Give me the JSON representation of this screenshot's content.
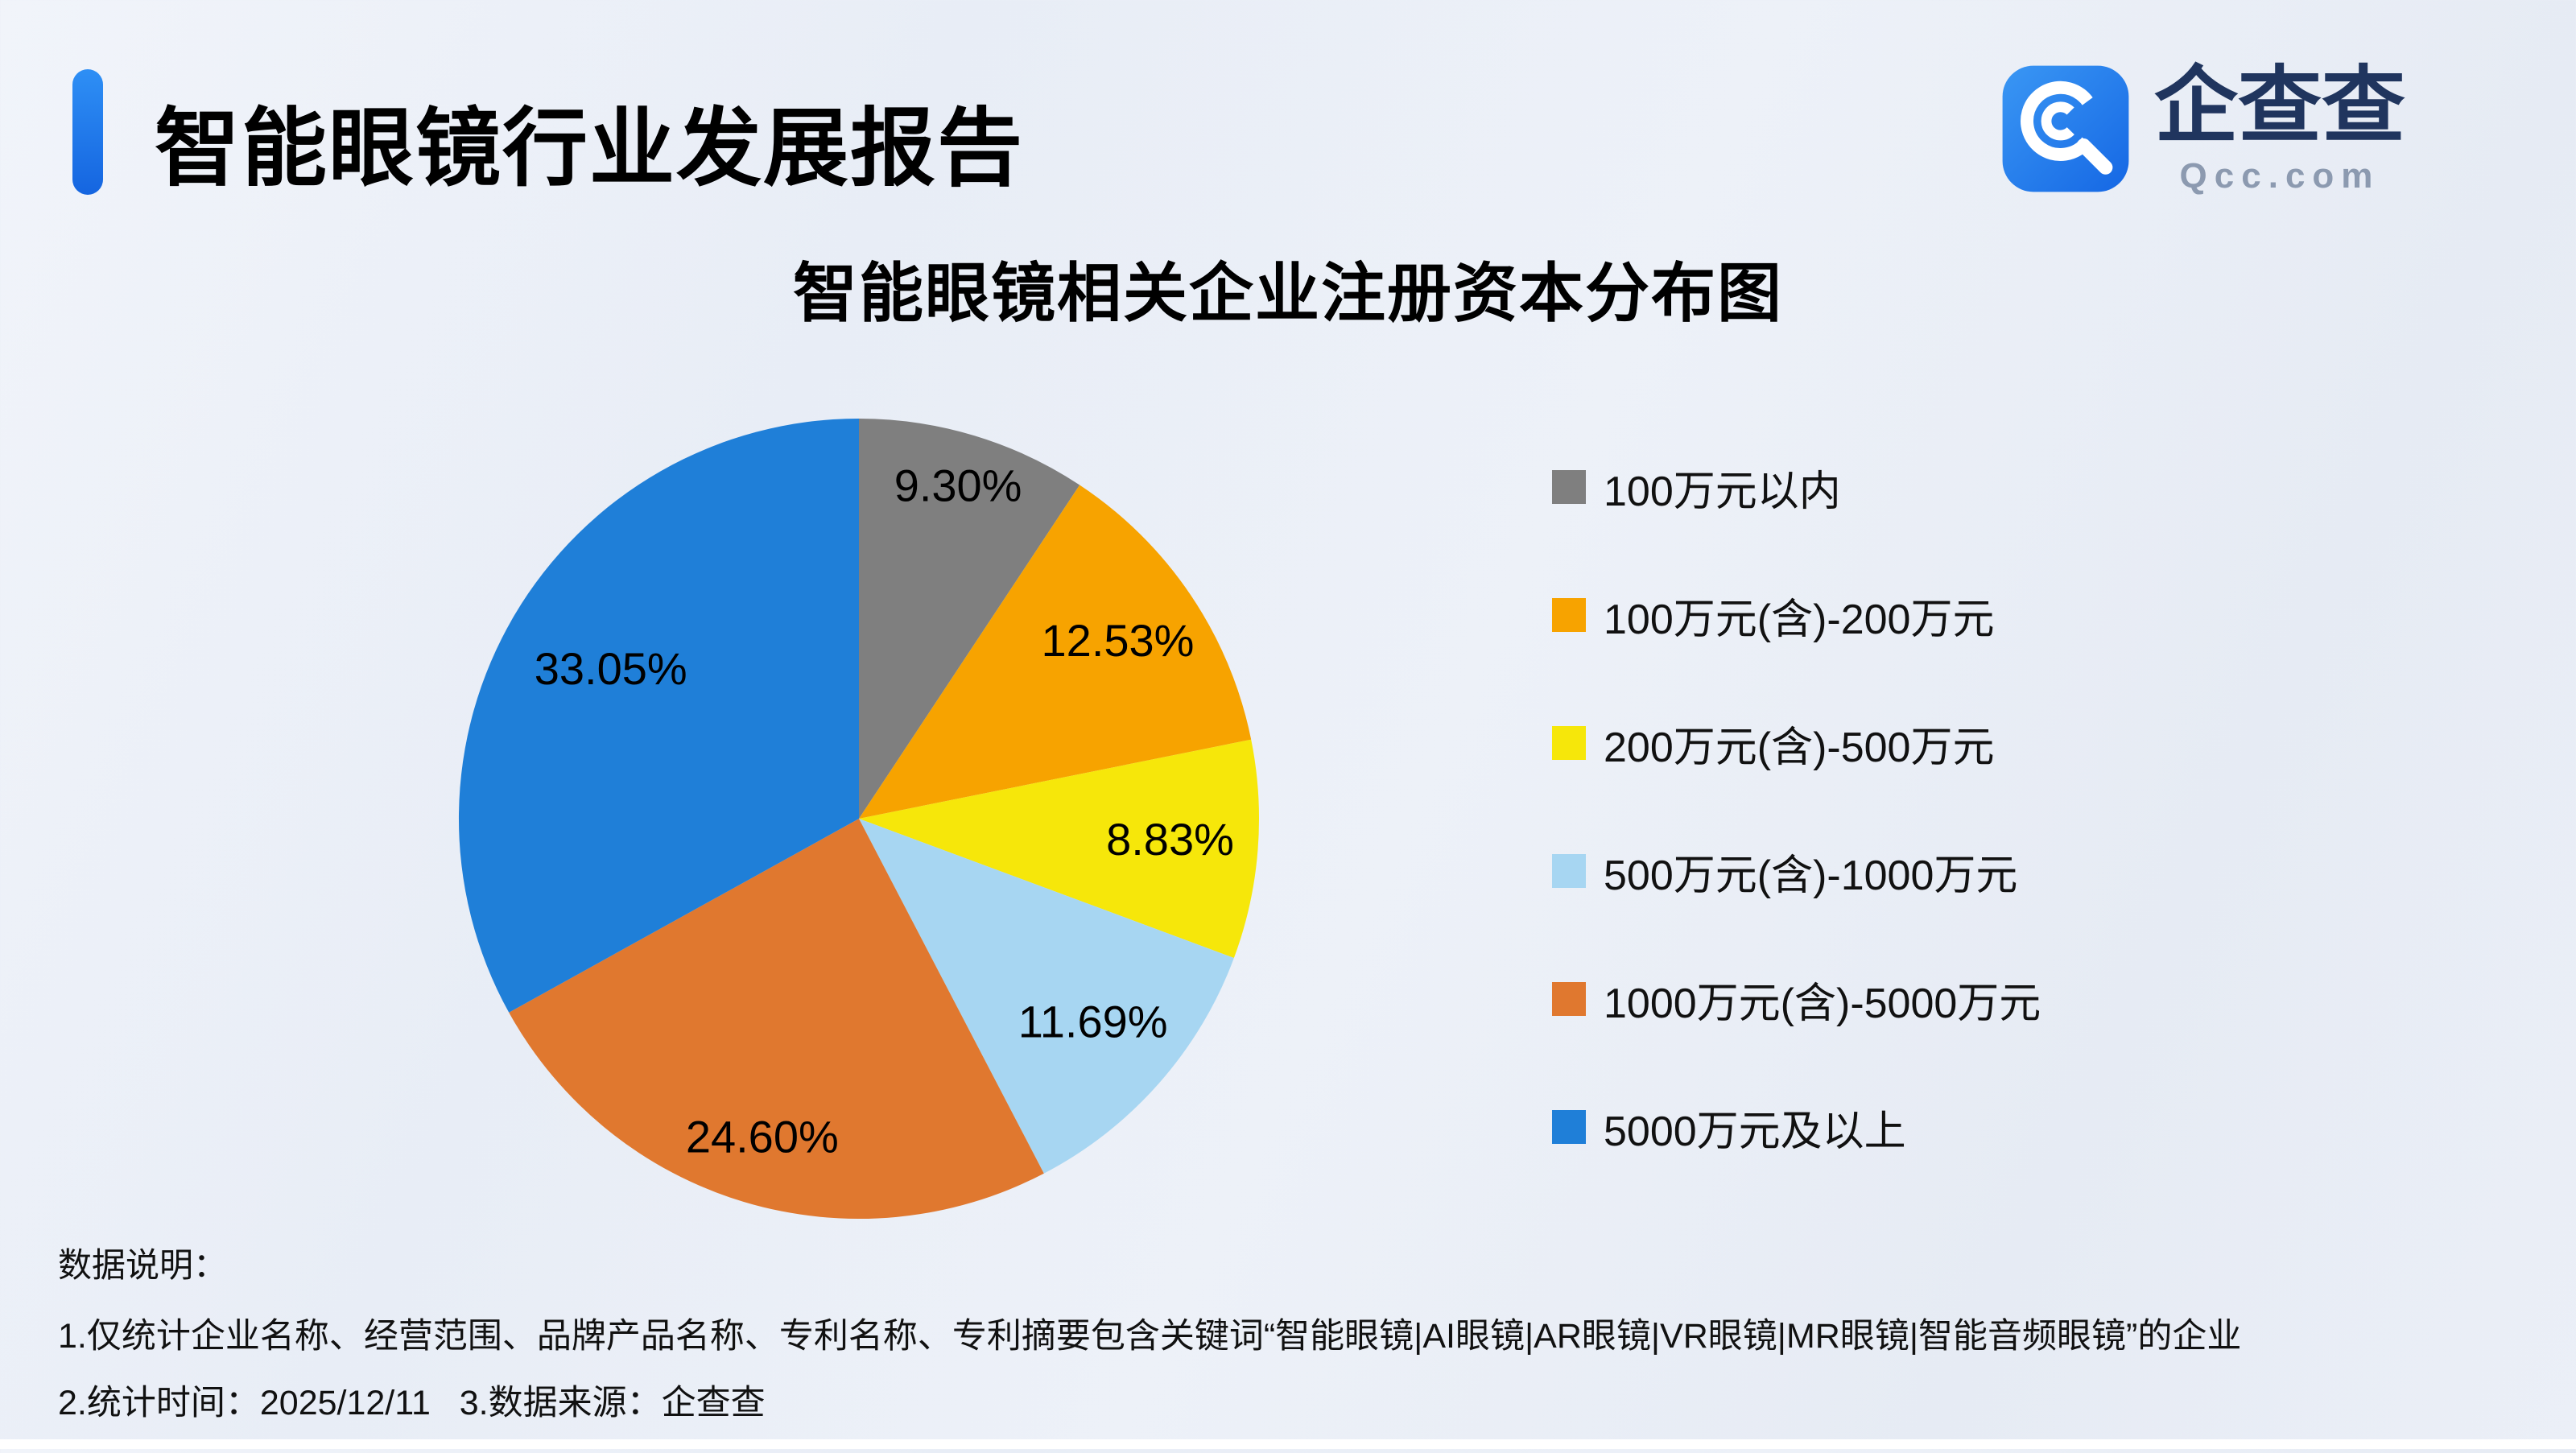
{
  "header": {
    "title": "智能眼镜行业发展报告",
    "brand": {
      "name": "企查查",
      "domain": "Qcc.com"
    }
  },
  "chart_data": {
    "type": "pie",
    "title": "智能眼镜相关企业注册资本分布图",
    "unit": "%",
    "direction": "clockwise",
    "start_angle": "top",
    "legend_position": "right",
    "slices": [
      {
        "label": "100万元以内",
        "value": 9.3,
        "display": "9.30%",
        "color": "#7F7F7F"
      },
      {
        "label": "100万元(含)-200万元",
        "value": 12.53,
        "display": "12.53%",
        "color": "#F7A300"
      },
      {
        "label": "200万元(含)-500万元",
        "value": 8.83,
        "display": "8.83%",
        "color": "#F6E70A"
      },
      {
        "label": "500万元(含)-1000万元",
        "value": 11.69,
        "display": "11.69%",
        "color": "#A7D6F2"
      },
      {
        "label": "1000万元(含)-5000万元",
        "value": 24.6,
        "display": "24.60%",
        "color": "#E0782F"
      },
      {
        "label": "5000万元及以上",
        "value": 33.05,
        "display": "33.05%",
        "color": "#1F7FD8"
      }
    ]
  },
  "footer": {
    "heading": "数据说明：",
    "notes": [
      "1.仅统计企业名称、经营范围、品牌产品名称、专利名称、专利摘要包含关键词“智能眼镜|AI眼镜|AR眼镜|VR眼镜|MR眼镜|智能音频眼镜”的企业",
      "2.统计时间：2025/12/11   3.数据来源：企查查"
    ]
  }
}
